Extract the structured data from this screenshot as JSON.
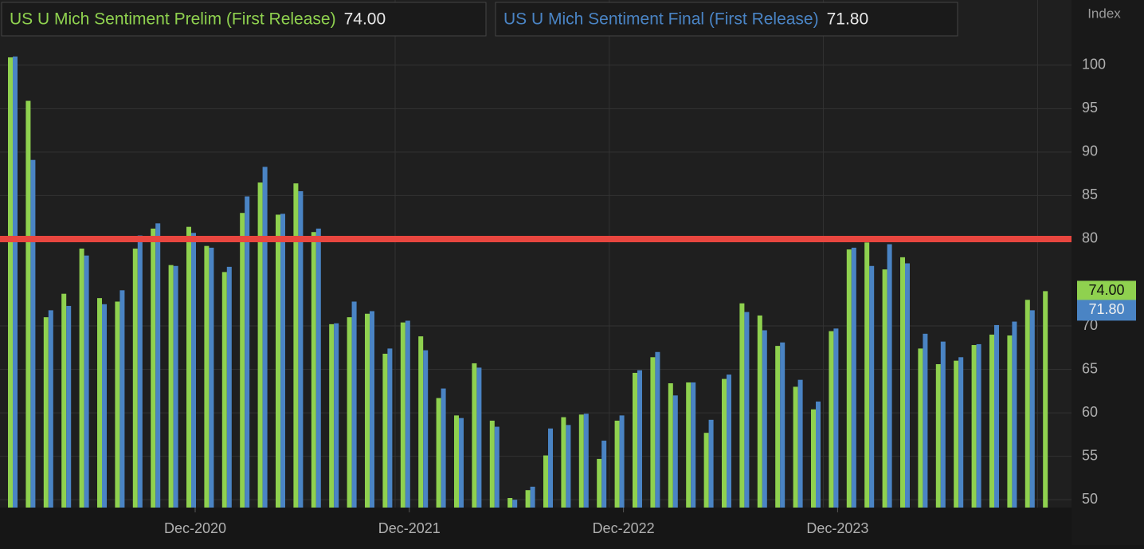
{
  "chart_data": {
    "type": "bar",
    "y_axis_label": "Index",
    "categories": [
      null,
      null,
      null,
      null,
      null,
      null,
      null,
      null,
      null,
      null,
      "Dec-2020",
      null,
      null,
      null,
      null,
      null,
      null,
      null,
      null,
      null,
      null,
      null,
      "Dec-2021",
      null,
      null,
      null,
      null,
      null,
      null,
      null,
      null,
      null,
      null,
      null,
      "Dec-2022",
      null,
      null,
      null,
      null,
      null,
      null,
      null,
      null,
      null,
      null,
      null,
      "Dec-2023",
      null,
      null,
      null,
      null,
      null,
      null,
      null,
      null,
      null,
      null,
      null,
      null
    ],
    "series": [
      {
        "name": "US U Mich Sentiment Prelim (First Release)",
        "color": "#8fd14f",
        "last_label": "74.00",
        "values": [
          100.9,
          95.9,
          71.0,
          73.7,
          78.9,
          73.2,
          72.8,
          78.9,
          81.2,
          77.0,
          81.4,
          79.2,
          76.2,
          83.0,
          86.5,
          82.8,
          86.4,
          80.8,
          70.2,
          71.0,
          71.4,
          66.8,
          70.4,
          68.8,
          61.7,
          59.7,
          65.7,
          59.1,
          50.2,
          51.1,
          55.1,
          59.5,
          59.8,
          54.7,
          59.1,
          64.6,
          66.4,
          63.4,
          63.5,
          57.7,
          63.9,
          72.6,
          71.2,
          67.7,
          63.0,
          60.4,
          69.4,
          78.8,
          79.6,
          76.5,
          77.9,
          67.4,
          65.6,
          66.0,
          67.8,
          69.0,
          68.9,
          73.0,
          74.0
        ]
      },
      {
        "name": "US U Mich Sentiment Final (First Release)",
        "color": "#4a84c4",
        "last_label": "71.80",
        "values": [
          101.0,
          89.1,
          71.8,
          72.3,
          78.1,
          72.5,
          74.1,
          80.4,
          81.8,
          76.9,
          80.7,
          79.0,
          76.8,
          84.9,
          88.3,
          82.9,
          85.5,
          81.2,
          70.3,
          72.8,
          71.7,
          67.4,
          70.6,
          67.2,
          62.8,
          59.4,
          65.2,
          58.4,
          50.0,
          51.5,
          58.2,
          58.6,
          59.9,
          56.8,
          59.7,
          64.9,
          67.0,
          62.0,
          63.5,
          59.2,
          64.4,
          71.6,
          69.5,
          68.1,
          63.8,
          61.3,
          69.7,
          79.0,
          76.9,
          79.4,
          77.2,
          69.1,
          68.2,
          66.4,
          67.9,
          70.1,
          70.5,
          71.8,
          null
        ]
      }
    ],
    "reference_line": {
      "value": 80,
      "color": "#e8463f"
    },
    "ylim": [
      49.1,
      107.5
    ],
    "yticks": [
      50,
      55,
      60,
      65,
      70,
      80,
      85,
      90,
      95,
      100
    ],
    "grid": true
  }
}
